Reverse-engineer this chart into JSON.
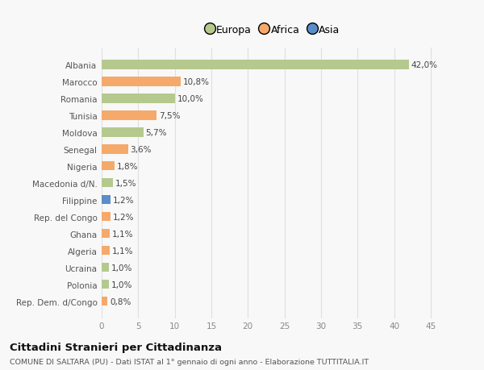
{
  "categories": [
    "Albania",
    "Marocco",
    "Romania",
    "Tunisia",
    "Moldova",
    "Senegal",
    "Nigeria",
    "Macedonia d/N.",
    "Filippine",
    "Rep. del Congo",
    "Ghana",
    "Algeria",
    "Ucraina",
    "Polonia",
    "Rep. Dem. d/Congo"
  ],
  "values": [
    42.0,
    10.8,
    10.0,
    7.5,
    5.7,
    3.6,
    1.8,
    1.5,
    1.2,
    1.2,
    1.1,
    1.1,
    1.0,
    1.0,
    0.8
  ],
  "labels": [
    "42,0%",
    "10,8%",
    "10,0%",
    "7,5%",
    "5,7%",
    "3,6%",
    "1,8%",
    "1,5%",
    "1,2%",
    "1,2%",
    "1,1%",
    "1,1%",
    "1,0%",
    "1,0%",
    "0,8%"
  ],
  "continents": [
    "Europa",
    "Africa",
    "Europa",
    "Africa",
    "Europa",
    "Africa",
    "Africa",
    "Europa",
    "Asia",
    "Africa",
    "Africa",
    "Africa",
    "Europa",
    "Europa",
    "Africa"
  ],
  "colors": {
    "Europa": "#b5c98e",
    "Africa": "#f5a96a",
    "Asia": "#5b8dc8"
  },
  "legend_labels": [
    "Europa",
    "Africa",
    "Asia"
  ],
  "legend_colors": [
    "#b5c98e",
    "#f5a96a",
    "#5b8dc8"
  ],
  "title": "Cittadini Stranieri per Cittadinanza",
  "subtitle": "COMUNE DI SALTARA (PU) - Dati ISTAT al 1° gennaio di ogni anno - Elaborazione TUTTITALIA.IT",
  "xlim": [
    0,
    47
  ],
  "xticks": [
    0,
    5,
    10,
    15,
    20,
    25,
    30,
    35,
    40,
    45
  ],
  "bg_color": "#f8f8f8",
  "grid_color": "#e0e0e0"
}
